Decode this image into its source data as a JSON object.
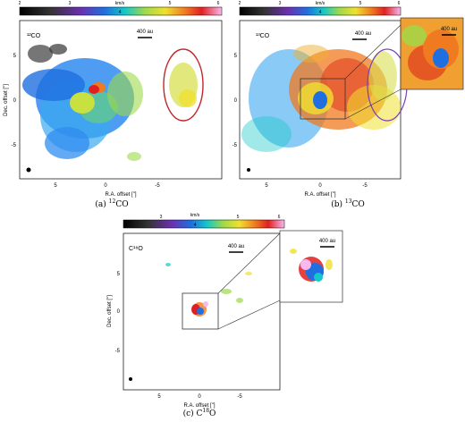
{
  "colorbar": {
    "unit": "km/s",
    "ticks": [
      "2",
      "3",
      "4",
      "5",
      "6"
    ]
  },
  "colorbar_c": {
    "unit": "km/s",
    "ticks": [
      "3",
      "4",
      "5",
      "6"
    ]
  },
  "scale_bar": "400 au",
  "axes": {
    "xlabel": "R.A. offset [\"]",
    "ylabel": "Dec. offset [\"]",
    "xticks": [
      "5",
      "0",
      "-5"
    ],
    "yticks": [
      "5",
      "0",
      "-5"
    ]
  },
  "panels": [
    {
      "id": "a",
      "label": "12CO",
      "caption_prefix": "(a) ",
      "caption_iso": "12",
      "caption_el": "CO"
    },
    {
      "id": "b",
      "label": "13CO",
      "caption_prefix": "(b) ",
      "caption_iso": "13",
      "caption_el": "CO"
    },
    {
      "id": "c",
      "label": "C18O",
      "caption_prefix": "(c) C",
      "caption_iso": "18",
      "caption_el": "O"
    }
  ],
  "colors": {
    "ellipse_a": "#c0282a",
    "ellipse_b": "#7a3fb5",
    "box": "#333333"
  }
}
